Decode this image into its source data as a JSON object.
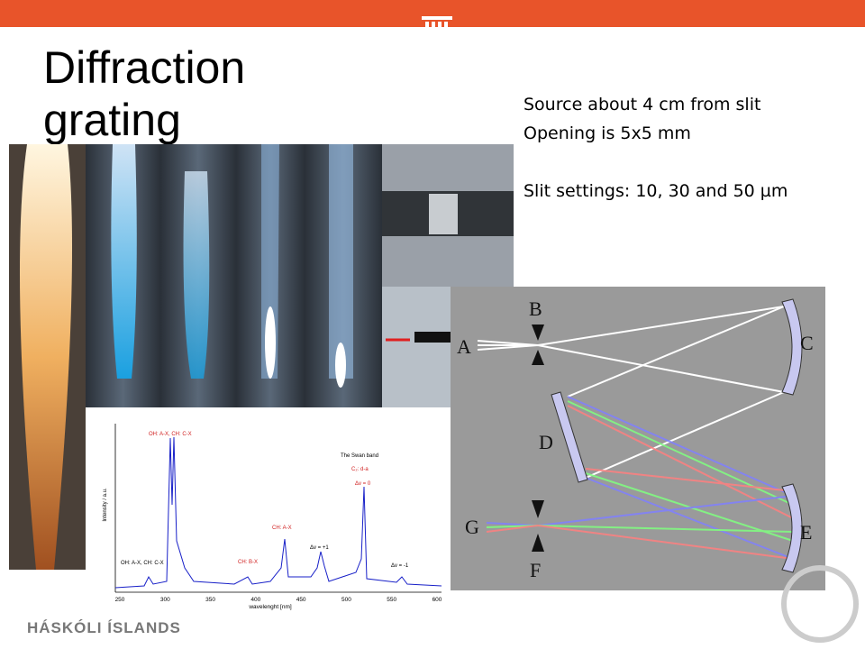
{
  "header": {
    "title": [
      "Diffraction",
      "grating"
    ]
  },
  "notes": [
    "Source about 4 cm from slit",
    "Opening is 5x5 mm",
    "Slit settings: 10, 30 and 50 µm"
  ],
  "spectrum": {
    "x_label": "wavelenght [nm]",
    "y_label": "Intensity / a.u.",
    "x_ticks": [
      "250",
      "300",
      "350",
      "400",
      "450",
      "500",
      "550",
      "600"
    ],
    "annotations": [
      "OH: A-X, CH: C-X",
      "The Swan band",
      "C₂: d-a",
      "Δv = 0",
      "CH: A-X",
      "Δv = +1",
      "CH: B-X",
      "OH: A-X, CH: C-X",
      "Δv = -1"
    ]
  },
  "diagram": {
    "labels": [
      "A",
      "B",
      "C",
      "D",
      "E",
      "F",
      "G"
    ]
  },
  "footer": {
    "institution": "HÁSKÓLI ÍSLANDS"
  }
}
